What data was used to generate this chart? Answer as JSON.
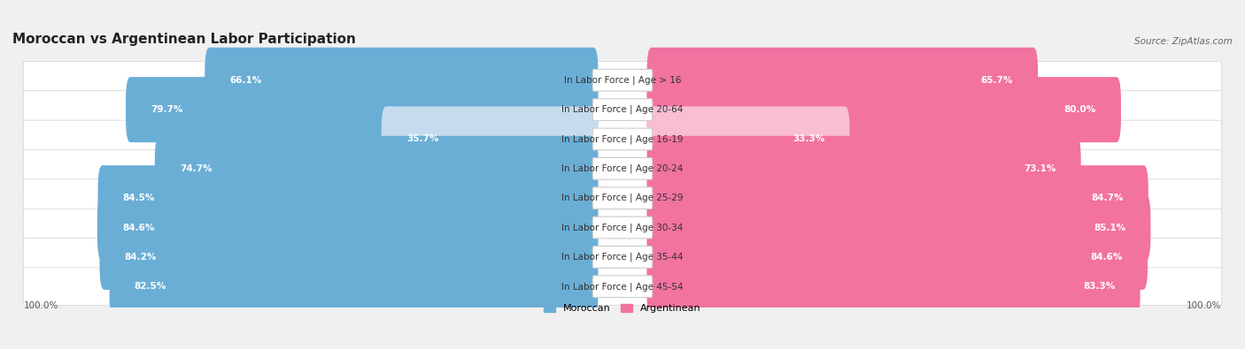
{
  "title": "Moroccan vs Argentinean Labor Participation",
  "source": "Source: ZipAtlas.com",
  "categories": [
    "In Labor Force | Age > 16",
    "In Labor Force | Age 20-64",
    "In Labor Force | Age 16-19",
    "In Labor Force | Age 20-24",
    "In Labor Force | Age 25-29",
    "In Labor Force | Age 30-34",
    "In Labor Force | Age 35-44",
    "In Labor Force | Age 45-54"
  ],
  "moroccan_values": [
    66.1,
    79.7,
    35.7,
    74.7,
    84.5,
    84.6,
    84.2,
    82.5
  ],
  "argentinean_values": [
    65.7,
    80.0,
    33.3,
    73.1,
    84.7,
    85.1,
    84.6,
    83.3
  ],
  "moroccan_color": "#6aaed6",
  "moroccan_color_light": "#c6dcee",
  "argentinean_color": "#f272a0",
  "argentinean_color_light": "#f9bdd4",
  "background_color": "#f0f0f0",
  "row_bg_light": "#e8e8e8",
  "row_bg_dark": "#dcdcdc",
  "axis_label_left": "100.0%",
  "axis_label_right": "100.0%",
  "title_fontsize": 11,
  "label_fontsize": 7.5,
  "value_fontsize": 7.5,
  "source_fontsize": 7.5,
  "legend_fontsize": 8
}
